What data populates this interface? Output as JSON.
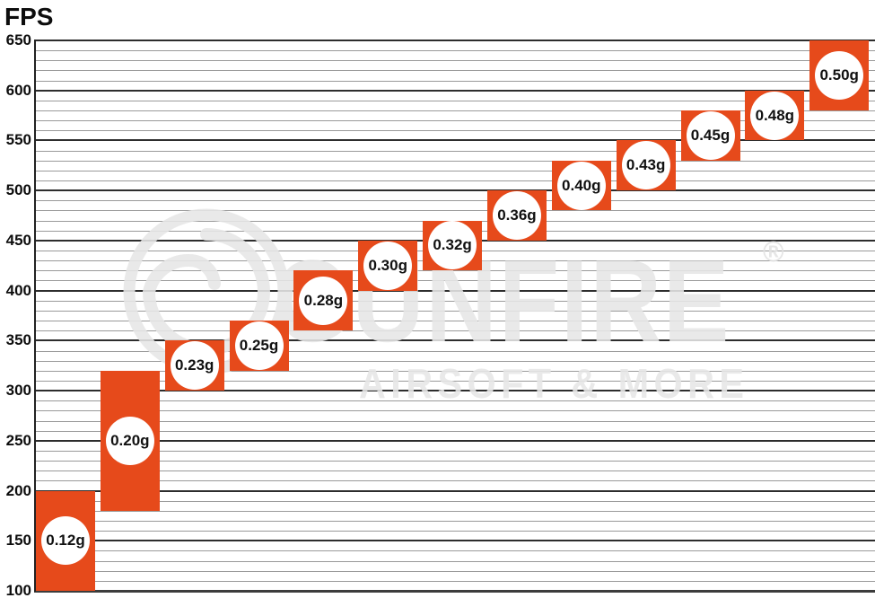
{
  "page": {
    "title_label": "FPS"
  },
  "watermark": {
    "brand": "GUNFIRE",
    "registered": "®",
    "tagline": "AIRSOFT & MORE"
  },
  "chart_data": {
    "type": "bar",
    "variant": "floating-range-columns",
    "title": "FPS",
    "ylabel": "FPS",
    "ylim": [
      100,
      650
    ],
    "y_major_step": 50,
    "y_minor_step": 10,
    "y_tick_labels": [
      "650",
      "600",
      "550",
      "500",
      "450",
      "400",
      "350",
      "300",
      "250",
      "200",
      "150",
      "100"
    ],
    "grid": "horizontal",
    "legend": "none",
    "bar_color": "#e64a1b",
    "badge_color": "#ffffff",
    "label_color": "#111111",
    "categories": [
      "0.12g",
      "0.20g",
      "0.23g",
      "0.25g",
      "0.28g",
      "0.30g",
      "0.32g",
      "0.36g",
      "0.40g",
      "0.43g",
      "0.45g",
      "0.48g",
      "0.50g"
    ],
    "bars": [
      {
        "label": "0.12g",
        "fps_min": 100,
        "fps_max": 200
      },
      {
        "label": "0.20g",
        "fps_min": 180,
        "fps_max": 320
      },
      {
        "label": "0.23g",
        "fps_min": 300,
        "fps_max": 350
      },
      {
        "label": "0.25g",
        "fps_min": 320,
        "fps_max": 370
      },
      {
        "label": "0.28g",
        "fps_min": 360,
        "fps_max": 420
      },
      {
        "label": "0.30g",
        "fps_min": 400,
        "fps_max": 450
      },
      {
        "label": "0.32g",
        "fps_min": 420,
        "fps_max": 470
      },
      {
        "label": "0.36g",
        "fps_min": 450,
        "fps_max": 500
      },
      {
        "label": "0.40g",
        "fps_min": 480,
        "fps_max": 530
      },
      {
        "label": "0.43g",
        "fps_min": 500,
        "fps_max": 550
      },
      {
        "label": "0.45g",
        "fps_min": 530,
        "fps_max": 580
      },
      {
        "label": "0.48g",
        "fps_min": 550,
        "fps_max": 600
      },
      {
        "label": "0.50g",
        "fps_min": 580,
        "fps_max": 650
      }
    ]
  }
}
